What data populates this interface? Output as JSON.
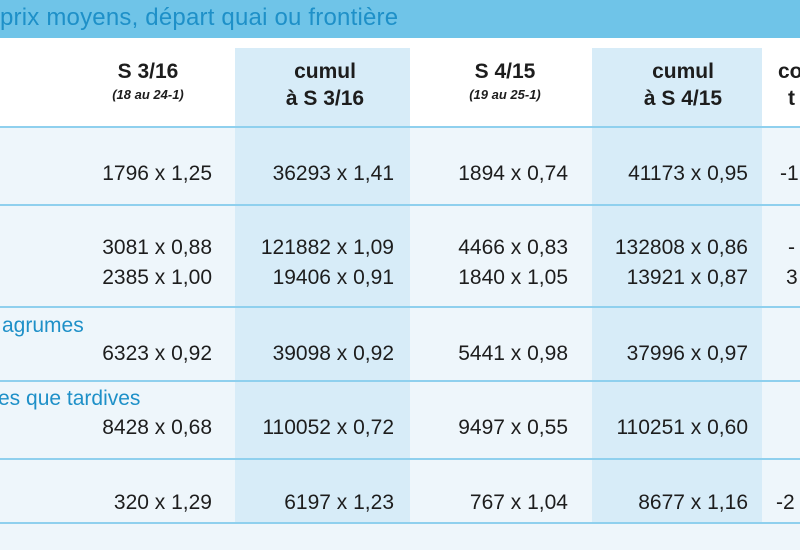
{
  "title": "prix moyens, départ quai ou frontière",
  "headers": [
    {
      "line1": "S 3/16",
      "line2": "(18 au 24-1)"
    },
    {
      "line1": "cumul",
      "line2": "à S 3/16"
    },
    {
      "line1": "S 4/15",
      "line2": "(19 au 25-1)"
    },
    {
      "line1": "cumul",
      "line2": "à S 4/15"
    },
    {
      "line1": "co",
      "line2": "t"
    }
  ],
  "sections": [
    "agrumes",
    "es que tardives"
  ],
  "rows": [
    {
      "cells": [
        "1796 x 1,25",
        "36293 x 1,41",
        "1894 x 0,74",
        "41173 x 0,95"
      ],
      "cut": "-1"
    },
    {
      "cells": [
        "3081 x 0,88",
        "121882 x 1,09",
        "4466 x 0,83",
        "132808 x 0,86"
      ],
      "cut": "-"
    },
    {
      "cells": [
        "2385 x 1,00",
        "19406 x 0,91",
        "1840 x 1,05",
        "13921 x 0,87"
      ],
      "cut": "3"
    },
    {
      "cells": [
        "6323 x 0,92",
        "39098 x 0,92",
        "5441 x 0,98",
        "37996 x 0,97"
      ],
      "cut": ""
    },
    {
      "cells": [
        "8428 x 0,68",
        "110052 x 0,72",
        "9497 x 0,55",
        "110251 x 0,60"
      ],
      "cut": ""
    },
    {
      "cells": [
        "320 x 1,29",
        "6197 x 1,23",
        "767 x 1,04",
        "8677 x 1,16"
      ],
      "cut": "-2"
    }
  ]
}
